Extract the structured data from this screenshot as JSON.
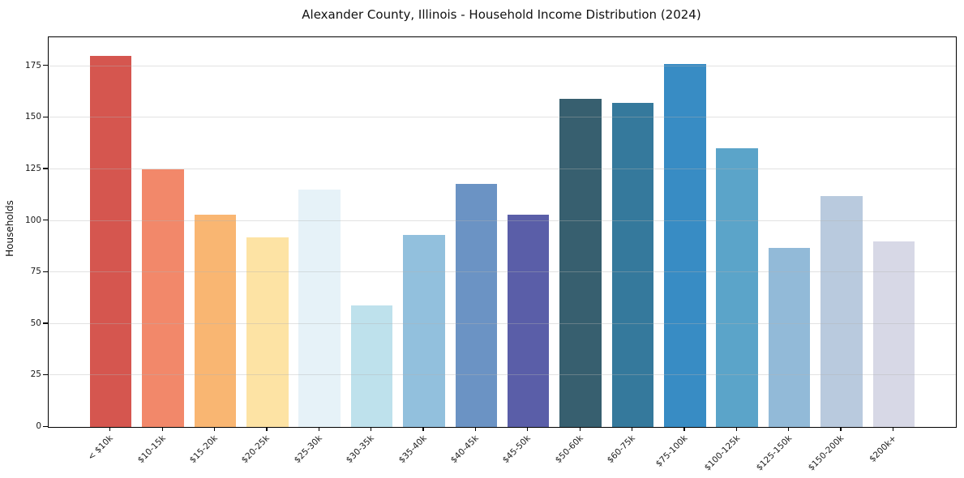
{
  "chart_data": {
    "type": "bar",
    "title": "Alexander County, Illinois - Household Income Distribution (2024)",
    "xlabel": "",
    "ylabel": "Households",
    "categories": [
      "< $10k",
      "$10-15k",
      "$15-20k",
      "$20-25k",
      "$25-30k",
      "$30-35k",
      "$35-40k",
      "$40-45k",
      "$45-50k",
      "$50-60k",
      "$60-75k",
      "$75-100k",
      "$100-125k",
      "$125-150k",
      "$150-200k",
      "$200k+"
    ],
    "values": [
      180,
      125,
      103,
      92,
      115,
      59,
      93,
      118,
      103,
      159,
      157,
      176,
      135,
      87,
      112,
      90
    ],
    "bar_colors": [
      "#d5564f",
      "#f2886a",
      "#f9b672",
      "#fde3a4",
      "#e6f2f8",
      "#bee1ec",
      "#92c0dd",
      "#6b93c4",
      "#5a5ea8",
      "#375f6f",
      "#35799c",
      "#388cc4",
      "#5ba4c9",
      "#92bad8",
      "#b9cade",
      "#d7d8e6"
    ],
    "yticks": [
      0,
      25,
      50,
      75,
      100,
      125,
      150,
      175
    ],
    "ylim": [
      0,
      189
    ],
    "grid": "horizontal",
    "legend": "none",
    "background_color": "#ffffff",
    "grid_color": "#e8e8e8",
    "spine_color": "#000000"
  }
}
